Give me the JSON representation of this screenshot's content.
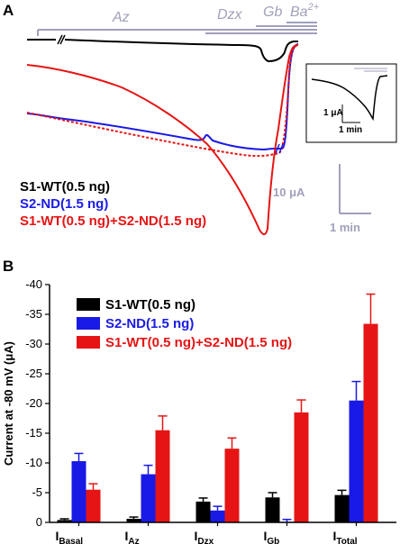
{
  "panel_a": {
    "letter": "A",
    "drugs": [
      {
        "label": "Az"
      },
      {
        "label": "Dzx"
      },
      {
        "label": "Gb"
      },
      {
        "label": "Ba",
        "sup": "2+"
      }
    ],
    "legend": [
      {
        "label": "S1-WT(0.5 ng)",
        "color": "#000000"
      },
      {
        "label": "S2-ND(1.5 ng)",
        "color": "#1a1ae6"
      },
      {
        "label": "S1-WT(0.5 ng)+S2-ND(1.5 ng)",
        "color": "#e61414"
      }
    ],
    "scale_current": "10 μA",
    "scale_time": "1 min",
    "inset": {
      "current": "1 μA",
      "time": "1 min"
    }
  },
  "panel_b": {
    "letter": "B"
  },
  "chart_data": {
    "type": "bar",
    "ylabel": "Current at -80 mV (μA)",
    "ylim": [
      0,
      -40
    ],
    "yticks": [
      0,
      -5,
      -10,
      -15,
      -20,
      -25,
      -30,
      -35,
      -40
    ],
    "categories": [
      {
        "main": "I",
        "sub": "Basal"
      },
      {
        "main": "I",
        "sub": "Az"
      },
      {
        "main": "I",
        "sub": "Dzx"
      },
      {
        "main": "I",
        "sub": "Gb"
      },
      {
        "main": "I",
        "sub": "Total"
      }
    ],
    "series": [
      {
        "name": "S1-WT(0.5 ng)",
        "color": "#000000",
        "values": [
          -0.4,
          -0.6,
          -3.5,
          -4.2,
          -4.6
        ],
        "errors": [
          0.2,
          0.3,
          0.6,
          0.8,
          0.8
        ]
      },
      {
        "name": "S2-ND(1.5 ng)",
        "color": "#1a1ae6",
        "values": [
          -10.3,
          -8.1,
          -2.0,
          -0.1,
          -20.5
        ],
        "errors": [
          1.3,
          1.5,
          0.7,
          0.4,
          3.2
        ]
      },
      {
        "name": "S1-WT(0.5 ng)+S2-ND(1.5 ng)",
        "color": "#e61414",
        "values": [
          -5.5,
          -15.5,
          -12.4,
          -18.5,
          -33.4
        ],
        "errors": [
          1.0,
          2.4,
          1.8,
          2.1,
          5.0
        ]
      }
    ]
  }
}
